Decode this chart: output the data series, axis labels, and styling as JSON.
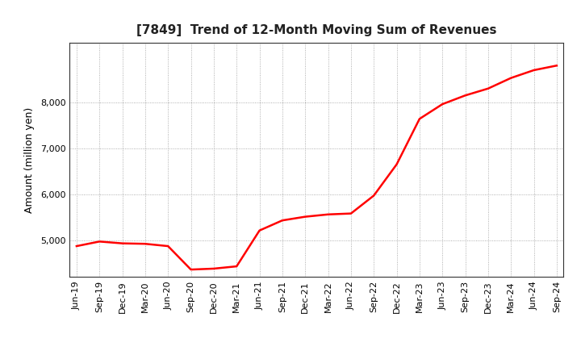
{
  "title": "[7849]  Trend of 12-Month Moving Sum of Revenues",
  "ylabel": "Amount (million yen)",
  "line_color": "#ff0000",
  "line_width": 1.8,
  "background_color": "#ffffff",
  "plot_bg_color": "#ffffff",
  "grid_color": "#999999",
  "ylim": [
    4200,
    9300
  ],
  "yticks": [
    5000,
    6000,
    7000,
    8000
  ],
  "x_labels": [
    "Jun-19",
    "Sep-19",
    "Dec-19",
    "Mar-20",
    "Jun-20",
    "Sep-20",
    "Dec-20",
    "Mar-21",
    "Jun-21",
    "Sep-21",
    "Dec-21",
    "Mar-22",
    "Jun-22",
    "Sep-22",
    "Dec-22",
    "Mar-23",
    "Jun-23",
    "Sep-23",
    "Dec-23",
    "Mar-24",
    "Jun-24",
    "Sep-24"
  ],
  "values": [
    4870,
    4970,
    4930,
    4920,
    4870,
    4360,
    4380,
    4430,
    5210,
    5430,
    5510,
    5560,
    5580,
    5970,
    6650,
    7640,
    7960,
    8150,
    8300,
    8530,
    8700,
    8800
  ],
  "title_fontsize": 11,
  "tick_fontsize": 8,
  "ylabel_fontsize": 9
}
